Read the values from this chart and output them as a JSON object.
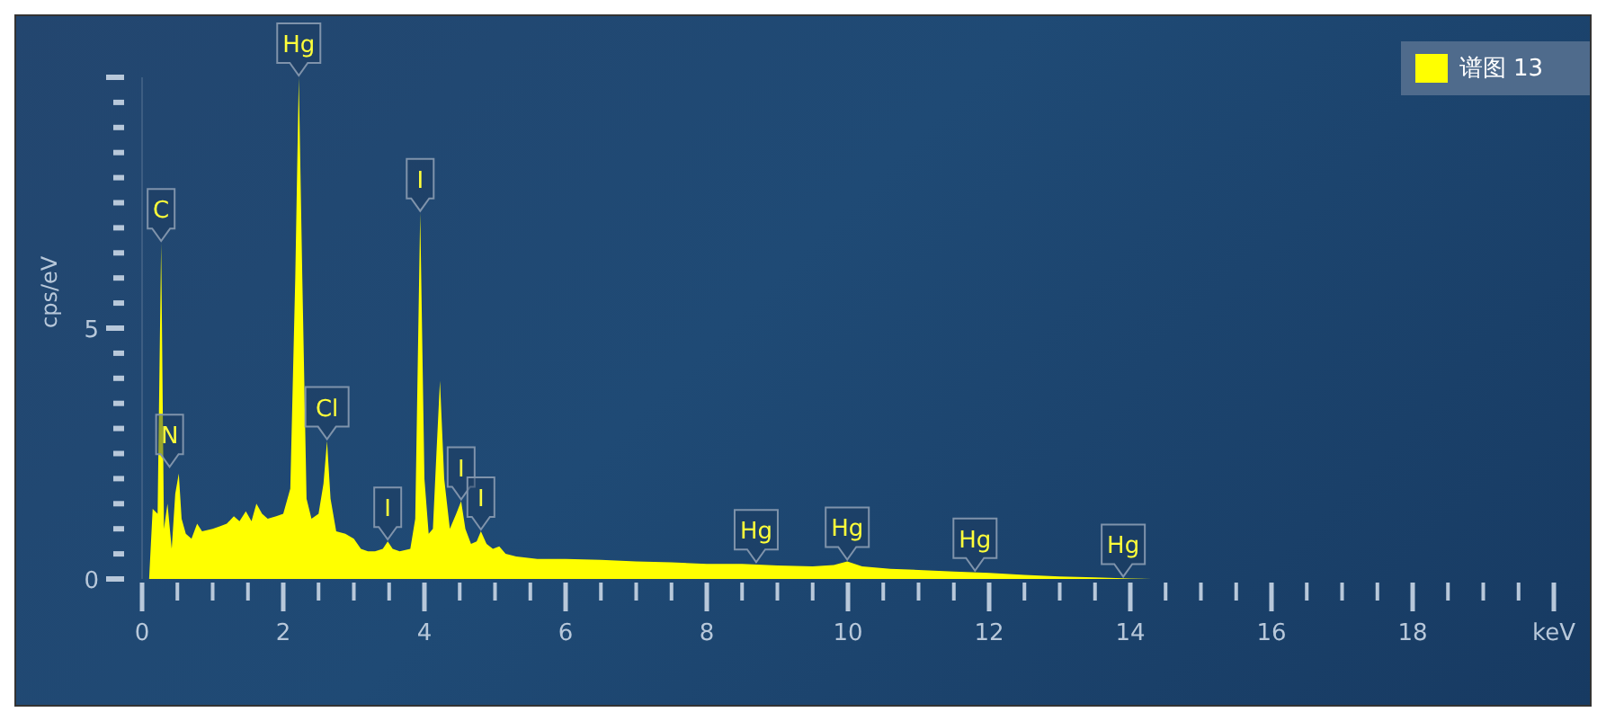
{
  "chart_data": {
    "type": "area",
    "ylabel": "cps/eV",
    "xlim": [
      0,
      20
    ],
    "ylim": [
      0,
      10
    ],
    "xticks": [
      0,
      {
        "value": 0.5,
        "label": null
      },
      {
        "value": 1,
        "label": null
      },
      {
        "value": 1.5,
        "label": null
      },
      2,
      {
        "value": 2.5,
        "label": null
      },
      {
        "value": 3,
        "label": null
      },
      {
        "value": 3.5,
        "label": null
      },
      4,
      {
        "value": 4.5,
        "label": null
      },
      {
        "value": 5,
        "label": null
      },
      {
        "value": 5.5,
        "label": null
      },
      6,
      {
        "value": 6.5,
        "label": null
      },
      {
        "value": 7,
        "label": null
      },
      {
        "value": 7.5,
        "label": null
      },
      8,
      {
        "value": 8.5,
        "label": null
      },
      {
        "value": 9,
        "label": null
      },
      {
        "value": 9.5,
        "label": null
      },
      10,
      {
        "value": 10.5,
        "label": null
      },
      {
        "value": 11,
        "label": null
      },
      {
        "value": 11.5,
        "label": null
      },
      12,
      {
        "value": 12.5,
        "label": null
      },
      {
        "value": 13,
        "label": null
      },
      {
        "value": 13.5,
        "label": null
      },
      14,
      {
        "value": 14.5,
        "label": null
      },
      {
        "value": 15,
        "label": null
      },
      {
        "value": 15.5,
        "label": null
      },
      16,
      {
        "value": 16.5,
        "label": null
      },
      {
        "value": 17,
        "label": null
      },
      {
        "value": 17.5,
        "label": null
      },
      18,
      {
        "value": 18.5,
        "label": null
      },
      {
        "value": 19,
        "label": null
      },
      {
        "value": 19.5,
        "label": null
      },
      {
        "value": 20,
        "label": "keV"
      }
    ],
    "yticks": [
      0,
      {
        "value": 0.5,
        "label": null
      },
      {
        "value": 1,
        "label": null
      },
      {
        "value": 1.5,
        "label": null
      },
      {
        "value": 2,
        "label": null
      },
      {
        "value": 2.5,
        "label": null
      },
      {
        "value": 3,
        "label": null
      },
      {
        "value": 3.5,
        "label": null
      },
      {
        "value": 4,
        "label": null
      },
      {
        "value": 4.5,
        "label": null
      },
      5,
      {
        "value": 5.5,
        "label": null
      },
      {
        "value": 6,
        "label": null
      },
      {
        "value": 6.5,
        "label": null
      },
      {
        "value": 7,
        "label": null
      },
      {
        "value": 7.5,
        "label": null
      },
      {
        "value": 8,
        "label": null
      },
      {
        "value": 8.5,
        "label": null
      },
      {
        "value": 9,
        "label": null
      },
      {
        "value": 9.5,
        "label": null
      },
      {
        "value": 10,
        "label": null
      }
    ],
    "grid": false,
    "legend": "top right",
    "x": [
      0.1,
      0.15,
      0.22,
      0.27,
      0.31,
      0.36,
      0.42,
      0.47,
      0.52,
      0.56,
      0.62,
      0.7,
      0.78,
      0.85,
      1.0,
      1.1,
      1.2,
      1.3,
      1.38,
      1.47,
      1.55,
      1.62,
      1.7,
      1.78,
      1.9,
      2.0,
      2.1,
      2.17,
      2.22,
      2.27,
      2.33,
      2.4,
      2.5,
      2.57,
      2.62,
      2.67,
      2.75,
      2.88,
      3.0,
      3.1,
      3.2,
      3.3,
      3.41,
      3.48,
      3.55,
      3.65,
      3.8,
      3.87,
      3.94,
      4.0,
      4.06,
      4.12,
      4.17,
      4.22,
      4.28,
      4.36,
      4.45,
      4.52,
      4.58,
      4.66,
      4.74,
      4.8,
      4.88,
      4.97,
      5.06,
      5.15,
      5.3,
      5.6,
      6.0,
      6.5,
      7.0,
      7.5,
      8.0,
      8.5,
      9.0,
      9.5,
      9.8,
      9.99,
      10.2,
      10.6,
      11.0,
      11.5,
      12.0,
      12.5,
      13.0,
      13.5,
      14.0,
      14.3
    ],
    "series": [
      {
        "name": "谱图 13",
        "color": "#ffff00",
        "values": [
          0,
          1.4,
          1.3,
          6.7,
          1.0,
          1.5,
          0.6,
          1.7,
          2.1,
          1.2,
          0.9,
          0.8,
          1.1,
          0.95,
          1.0,
          1.05,
          1.1,
          1.25,
          1.15,
          1.35,
          1.15,
          1.5,
          1.3,
          1.2,
          1.25,
          1.3,
          1.8,
          6,
          10,
          6,
          1.6,
          1.2,
          1.3,
          1.9,
          2.75,
          1.6,
          0.95,
          0.9,
          0.8,
          0.6,
          0.55,
          0.55,
          0.6,
          0.75,
          0.6,
          0.55,
          0.6,
          1.2,
          7.3,
          2,
          0.9,
          1.0,
          2.5,
          3.95,
          2,
          1.0,
          1.3,
          1.55,
          1.0,
          0.7,
          0.75,
          0.95,
          0.7,
          0.6,
          0.65,
          0.5,
          0.45,
          0.4,
          0.4,
          0.38,
          0.35,
          0.33,
          0.3,
          0.3,
          0.27,
          0.25,
          0.28,
          0.35,
          0.25,
          0.2,
          0.18,
          0.15,
          0.12,
          0.08,
          0.05,
          0.03,
          0.01,
          0
        ]
      }
    ],
    "annotations": [
      {
        "text": "C",
        "x": 0.27,
        "y": 6.7
      },
      {
        "text": "N",
        "x": 0.39,
        "y": 2.2
      },
      {
        "text": "Hg",
        "x": 2.22,
        "y": 10
      },
      {
        "text": "Cl",
        "x": 2.62,
        "y": 2.75
      },
      {
        "text": "I",
        "x": 3.48,
        "y": 0.75
      },
      {
        "text": "I",
        "x": 3.94,
        "y": 7.3
      },
      {
        "text": "I",
        "x": 4.52,
        "y": 1.55
      },
      {
        "text": "I",
        "x": 4.8,
        "y": 0.95
      },
      {
        "text": "Hg",
        "x": 8.7,
        "y": 0.3
      },
      {
        "text": "Hg",
        "x": 9.99,
        "y": 0.35
      },
      {
        "text": "Hg",
        "x": 11.8,
        "y": 0.13
      },
      {
        "text": "Hg",
        "x": 13.9,
        "y": 0.01
      }
    ]
  }
}
